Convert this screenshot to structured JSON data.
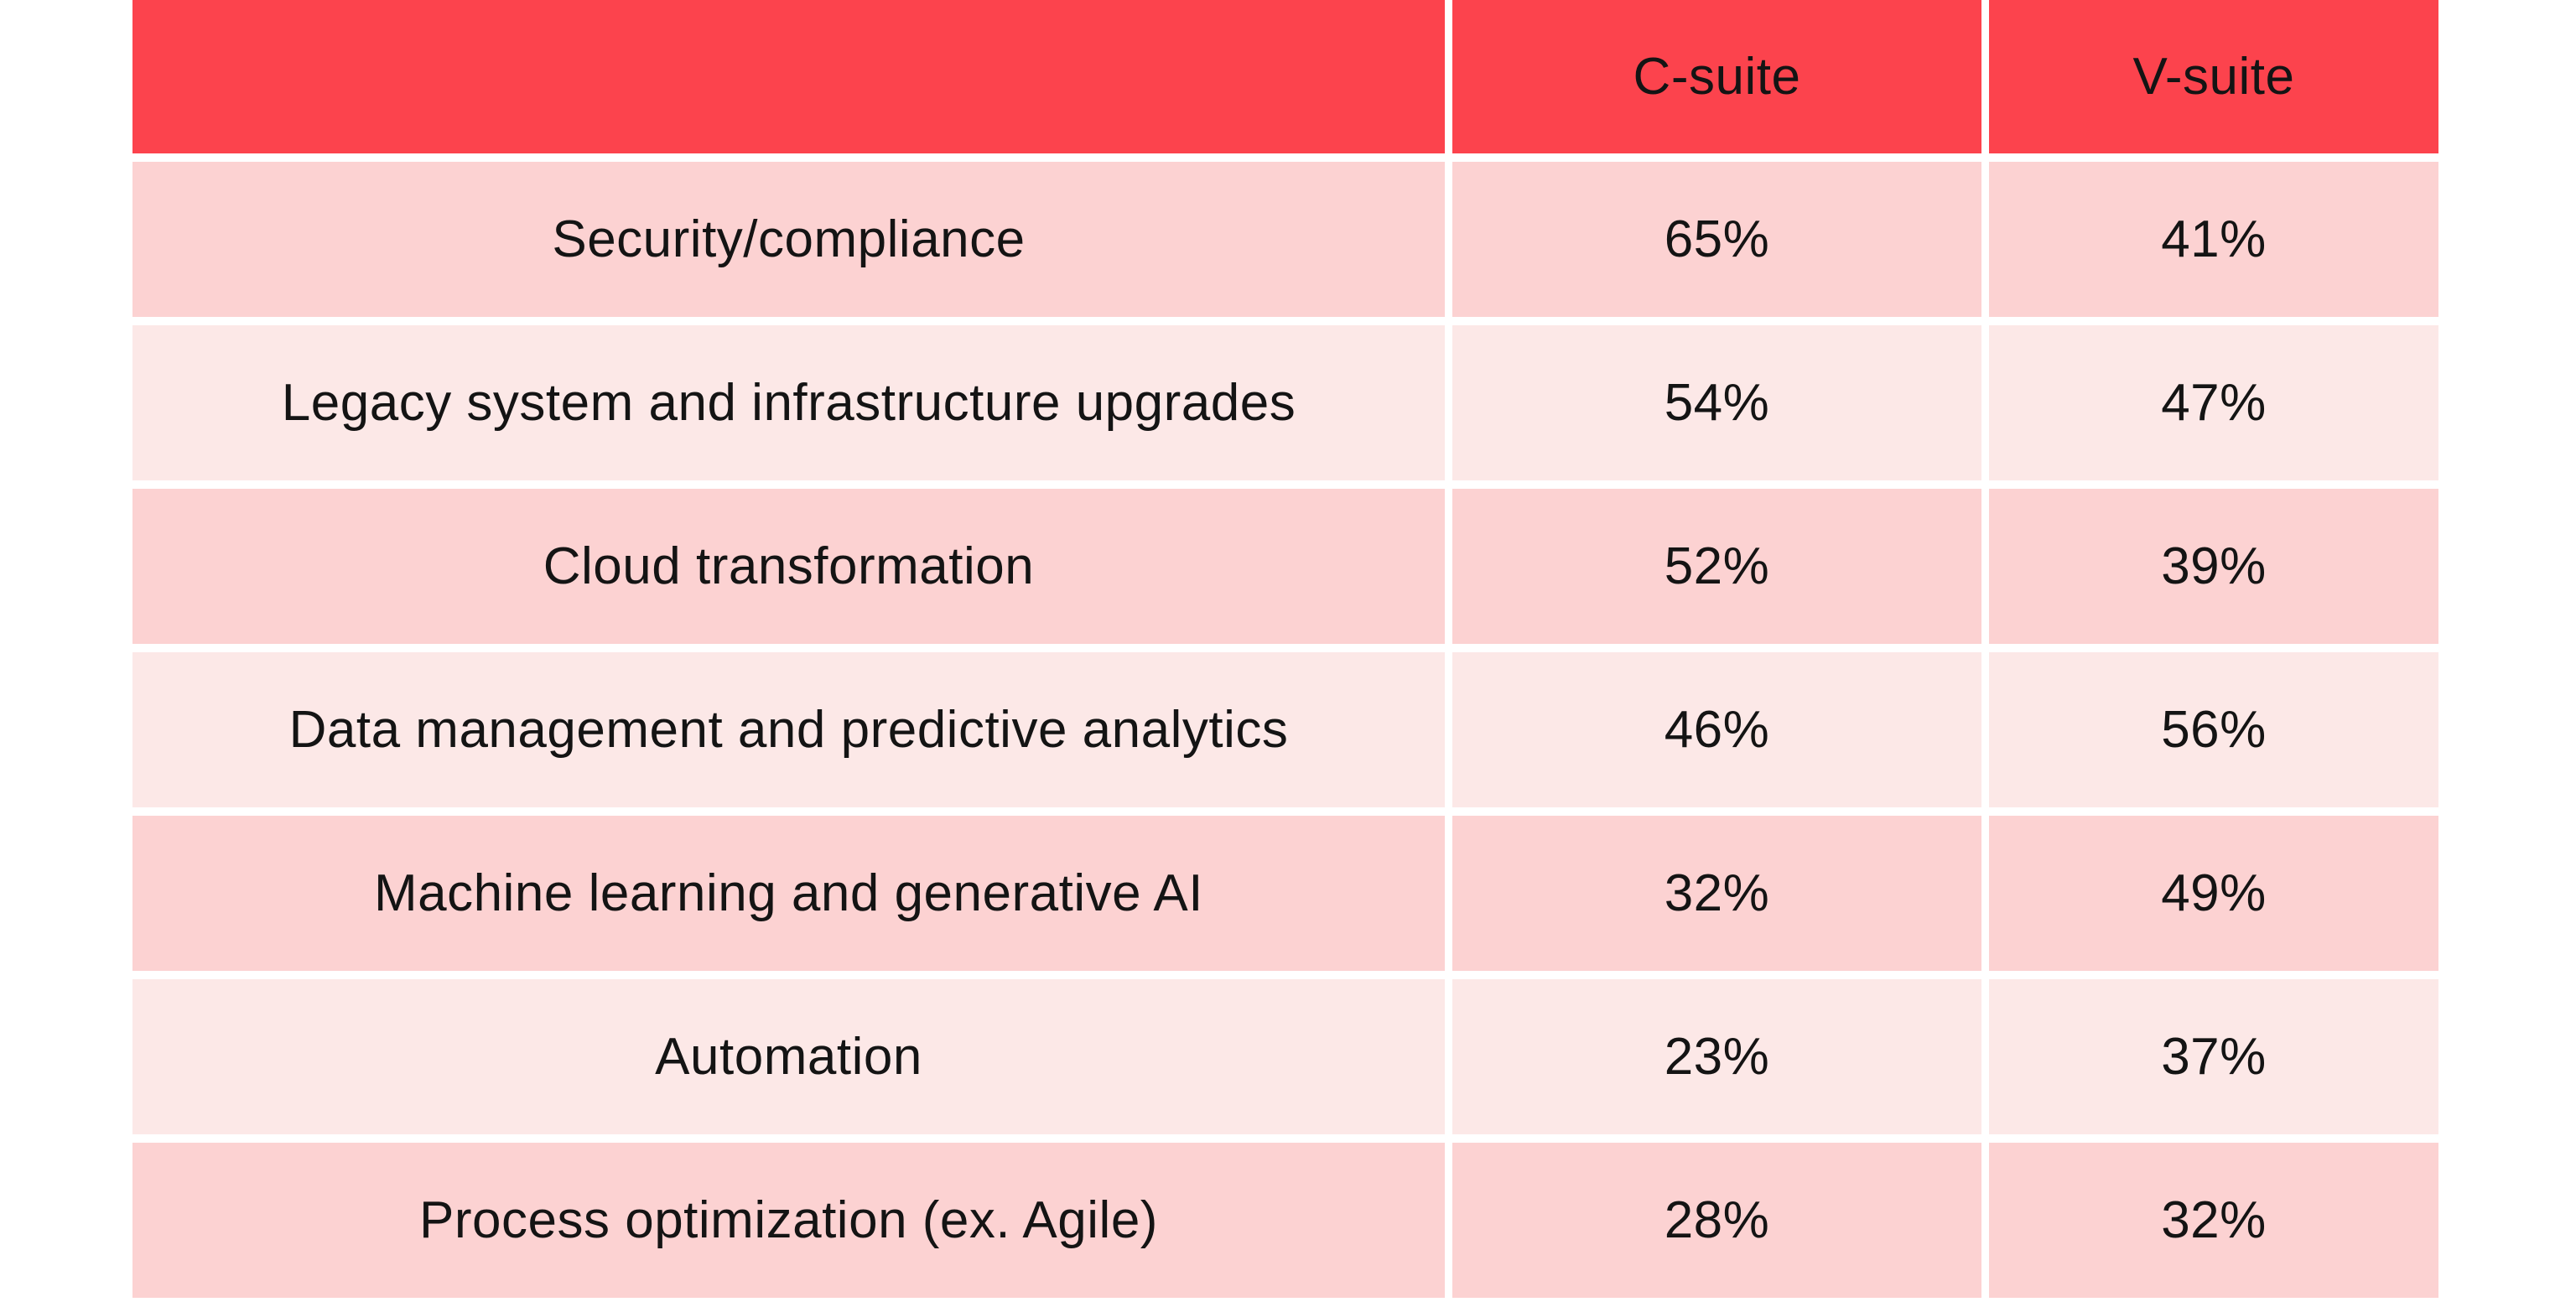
{
  "colors": {
    "header-bg": "#FC434D",
    "row-dark": "#FCD2D2",
    "row-light": "#FCE8E7",
    "text": "#141414",
    "grid-line": "#FFFFFF",
    "page-bg": "#FFFFFF"
  },
  "table": {
    "header": {
      "label": "",
      "col1": "C-suite",
      "col2": "V-suite"
    },
    "rows": [
      {
        "label": "Security/compliance",
        "c_suite": "65%",
        "v_suite": "41%"
      },
      {
        "label": "Legacy system and infrastructure upgrades",
        "c_suite": "54%",
        "v_suite": "47%"
      },
      {
        "label": "Cloud transformation",
        "c_suite": "52%",
        "v_suite": "39%"
      },
      {
        "label": "Data management and predictive analytics",
        "c_suite": "46%",
        "v_suite": "56%"
      },
      {
        "label": "Machine learning and generative AI",
        "c_suite": "32%",
        "v_suite": "49%"
      },
      {
        "label": "Automation",
        "c_suite": "23%",
        "v_suite": "37%"
      },
      {
        "label": "Process optimization (ex. Agile)",
        "c_suite": "28%",
        "v_suite": "32%"
      }
    ]
  },
  "chart_data": {
    "type": "table",
    "title": "",
    "categories": [
      "Security/compliance",
      "Legacy system and infrastructure upgrades",
      "Cloud transformation",
      "Data management and predictive analytics",
      "Machine learning and generative AI",
      "Automation",
      "Process optimization (ex. Agile)"
    ],
    "series": [
      {
        "name": "C-suite",
        "unit": "%",
        "values": [
          65,
          54,
          52,
          46,
          32,
          23,
          28
        ]
      },
      {
        "name": "V-suite",
        "unit": "%",
        "values": [
          41,
          47,
          39,
          56,
          49,
          37,
          32
        ]
      }
    ],
    "legend_position": "top-header-row",
    "grid": true
  }
}
